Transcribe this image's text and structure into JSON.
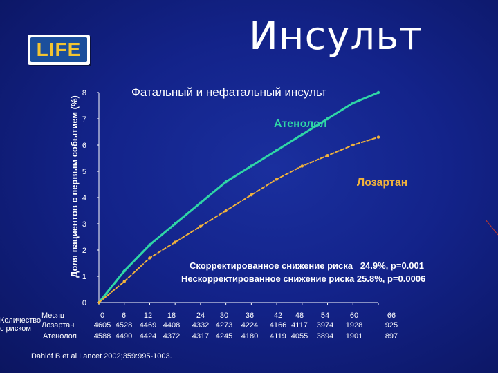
{
  "slide_title": "Инсульт",
  "logo_text": "LIFE",
  "chart_data": {
    "type": "line",
    "title": "Фатальный и нефатальный инсульт",
    "ylabel": "Доля пациентов с первым событием (%)",
    "ylim": [
      0,
      8
    ],
    "yticks": [
      "0",
      "1",
      "2",
      "3",
      "4",
      "5",
      "6",
      "7",
      "8"
    ],
    "xlim": [
      0,
      66
    ],
    "xticks": [
      0,
      6,
      12,
      18,
      24,
      30,
      36,
      42,
      48,
      54,
      60,
      66
    ],
    "series": [
      {
        "name": "Атенолол",
        "color": "#2fd6a6",
        "x": [
          0,
          6,
          12,
          18,
          24,
          30,
          36,
          42,
          48,
          54,
          60,
          66
        ],
        "y": [
          0,
          1.2,
          2.2,
          3.0,
          3.8,
          4.6,
          5.2,
          5.8,
          6.4,
          7.0,
          7.6,
          8.0
        ]
      },
      {
        "name": "Лозартан",
        "color": "#f0b23c",
        "x": [
          0,
          6,
          12,
          18,
          24,
          30,
          36,
          42,
          48,
          54,
          60,
          66
        ],
        "y": [
          0,
          0.8,
          1.7,
          2.3,
          2.9,
          3.5,
          4.1,
          4.7,
          5.2,
          5.6,
          6.0,
          6.3
        ]
      }
    ],
    "annotations": [
      "Скорректированное снижение риска   24.9%, p=0.001",
      "Нескорректированное снижение риска 25.8%, p=0.0006"
    ]
  },
  "risk_table": {
    "title_line1": "Количество",
    "title_line2": "с риском",
    "header_label": "Месяц",
    "months": [
      "0",
      "6",
      "12",
      "18",
      "24",
      "30",
      "36",
      "42",
      "48",
      "54",
      "60",
      "66"
    ],
    "rows": [
      {
        "label": "Лозартан",
        "values": [
          "4605",
          "4528",
          "4469",
          "4408",
          "4332",
          "4273",
          "4224",
          "4166",
          "4117",
          "3974",
          "1928",
          "925"
        ]
      },
      {
        "label": "Атенолол",
        "values": [
          "4588",
          "4490",
          "4424",
          "4372",
          "4317",
          "4245",
          "4180",
          "4119",
          "4055",
          "3894",
          "1901",
          "897"
        ]
      }
    ]
  },
  "citation": "Dahlöf B et al Lancet 2002;359:995-1003."
}
